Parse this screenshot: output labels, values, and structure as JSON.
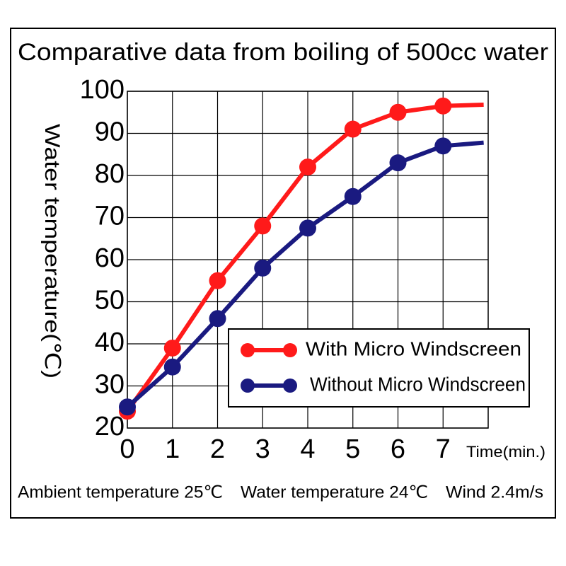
{
  "chart_data": {
    "type": "line",
    "title": "Comparative data from boiling of 500cc water",
    "x_label": "Time(min.)",
    "y_label": "Water temperature(℃)",
    "notes": [
      "Ambient temperature 25℃",
      "Water temperature 24℃",
      "Wind 2.4m/s"
    ],
    "x": [
      0,
      1,
      2,
      3,
      4,
      5,
      6,
      7,
      7.9
    ],
    "series": [
      {
        "name": "With Micro Windscreen",
        "color": "#ff1a1a",
        "values": [
          24,
          39,
          55,
          68,
          82,
          91,
          95,
          96.5,
          96.8
        ]
      },
      {
        "name": "Without Micro Windscreen",
        "color": "#1a1a80",
        "values": [
          25,
          34.5,
          46,
          58,
          67.5,
          75,
          83,
          87,
          87.8
        ]
      }
    ],
    "xlim": [
      0,
      8
    ],
    "xticks": [
      0,
      1,
      2,
      3,
      4,
      5,
      6,
      7
    ],
    "ylim": [
      20,
      100
    ],
    "yticks": [
      20,
      30,
      40,
      50,
      60,
      70,
      80,
      90,
      100
    ],
    "grid": true
  }
}
